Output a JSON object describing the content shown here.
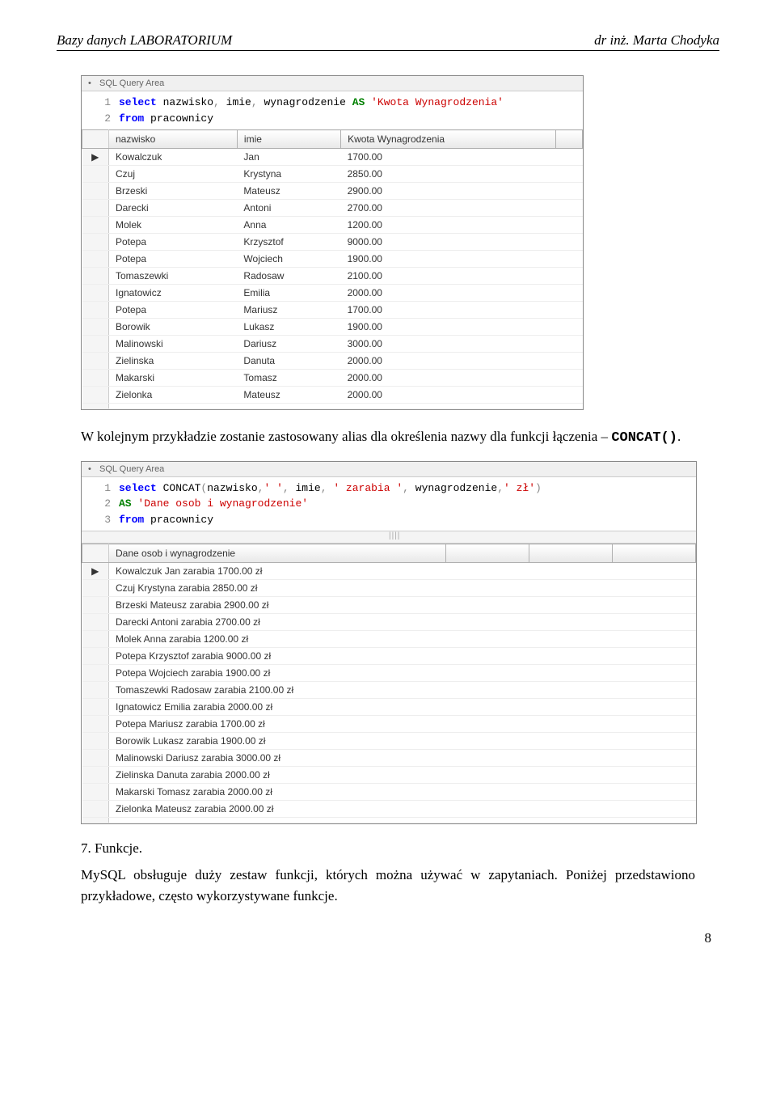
{
  "header": {
    "left": "Bazy danych LABORATORIUM",
    "right": "dr inż. Marta Chodyka"
  },
  "shot1": {
    "area_label": "SQL Query Area",
    "code_lines": [
      {
        "n": "1",
        "html": "<span class='kw-blue'>select</span> nazwisko<span class='kw-gray'>,</span> imie<span class='kw-gray'>,</span> wynagrodzenie <span class='kw-green'>AS</span> <span class='kw-red'>'Kwota Wynagrodzenia'</span>"
      },
      {
        "n": "2",
        "html": "<span class='kw-blue'>from</span> pracownicy"
      }
    ],
    "columns": [
      "nazwisko",
      "imie",
      "Kwota Wynagrodzenia",
      ""
    ],
    "rows": [
      [
        "Kowalczuk",
        "Jan",
        "1700.00"
      ],
      [
        "Czuj",
        "Krystyna",
        "2850.00"
      ],
      [
        "Brzeski",
        "Mateusz",
        "2900.00"
      ],
      [
        "Darecki",
        "Antoni",
        "2700.00"
      ],
      [
        "Molek",
        "Anna",
        "1200.00"
      ],
      [
        "Potepa",
        "Krzysztof",
        "9000.00"
      ],
      [
        "Potepa",
        "Wojciech",
        "1900.00"
      ],
      [
        "Tomaszewki",
        "Radosaw",
        "2100.00"
      ],
      [
        "Ignatowicz",
        "Emilia",
        "2000.00"
      ],
      [
        "Potepa",
        "Mariusz",
        "1700.00"
      ],
      [
        "Borowik",
        "Lukasz",
        "1900.00"
      ],
      [
        "Malinowski",
        "Dariusz",
        "3000.00"
      ],
      [
        "Zielinska",
        "Danuta",
        "2000.00"
      ],
      [
        "Makarski",
        "Tomasz",
        "2000.00"
      ],
      [
        "Zielonka",
        "Mateusz",
        "2000.00"
      ]
    ]
  },
  "para1": "W kolejnym przykładzie zostanie zastosowany alias dla określenia nazwy dla funkcji łączenia – ",
  "para1_code": "CONCAT()",
  "para1_tail": ".",
  "shot2": {
    "area_label": "SQL Query Area",
    "code_lines": [
      {
        "n": "1",
        "html": "<span class='kw-blue'>select</span> CONCAT<span class='kw-gray'>(</span>nazwisko<span class='kw-gray'>,</span><span class='kw-red'>' '</span><span class='kw-gray'>,</span> imie<span class='kw-gray'>,</span> <span class='kw-red'>' zarabia '</span><span class='kw-gray'>,</span> wynagrodzenie<span class='kw-gray'>,</span><span class='kw-red'>' zł'</span><span class='kw-gray'>)</span>"
      },
      {
        "n": "2",
        "html": "<span class='kw-green'>AS</span> <span class='kw-red'>'Dane osob i wynagrodzenie'</span>"
      },
      {
        "n": "3",
        "html": "<span class='kw-blue'>from</span> pracownicy"
      }
    ],
    "columns": [
      "Dane osob i wynagrodzenie",
      "",
      "",
      ""
    ],
    "rows": [
      [
        "Kowalczuk Jan zarabia 1700.00 zł"
      ],
      [
        "Czuj Krystyna zarabia 2850.00 zł"
      ],
      [
        "Brzeski Mateusz zarabia 2900.00 zł"
      ],
      [
        "Darecki Antoni zarabia 2700.00 zł"
      ],
      [
        "Molek Anna zarabia 1200.00 zł"
      ],
      [
        "Potepa Krzysztof zarabia 9000.00 zł"
      ],
      [
        "Potepa Wojciech zarabia 1900.00 zł"
      ],
      [
        "Tomaszewki Radosaw zarabia 2100.00 zł"
      ],
      [
        "Ignatowicz Emilia zarabia 2000.00 zł"
      ],
      [
        "Potepa Mariusz zarabia 1700.00 zł"
      ],
      [
        "Borowik Lukasz zarabia 1900.00 zł"
      ],
      [
        "Malinowski Dariusz zarabia 3000.00 zł"
      ],
      [
        "Zielinska Danuta zarabia 2000.00 zł"
      ],
      [
        "Makarski Tomasz zarabia 2000.00 zł"
      ],
      [
        "Zielonka Mateusz zarabia 2000.00 zł"
      ]
    ]
  },
  "section7": {
    "title": "7. Funkcje.",
    "p1": "MySQL obsługuje duży zestaw funkcji, których można używać w zapytaniach. Poniżej przedstawiono przykładowe, często wykorzystywane funkcje."
  },
  "page_number": "8"
}
